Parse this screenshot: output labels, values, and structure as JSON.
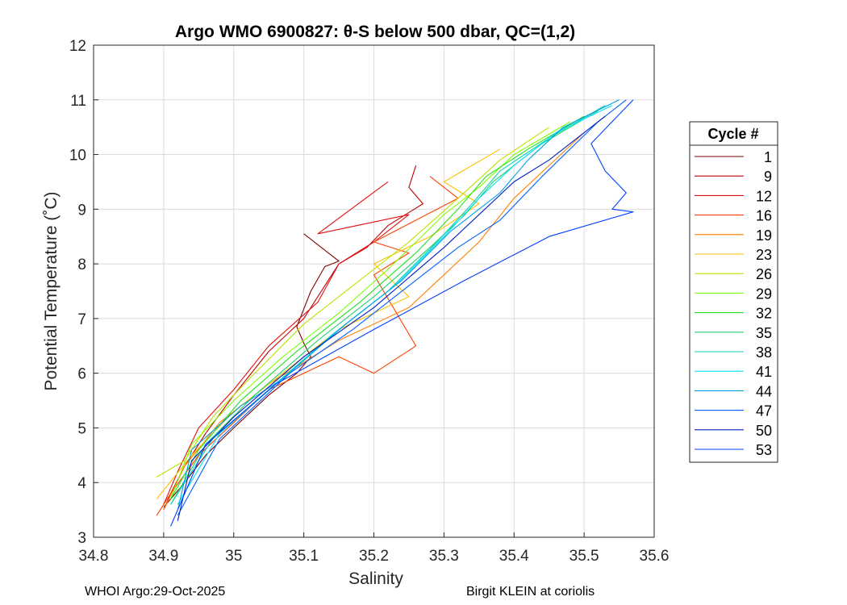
{
  "chart_data": {
    "type": "line",
    "title": "Argo WMO 6900827: θ-S below 500 dbar,  QC=(1,2)",
    "xlabel": "Salinity",
    "ylabel": "Potential Temperature (˚C)",
    "xlim": [
      34.8,
      35.6
    ],
    "ylim": [
      3,
      12
    ],
    "xticks": [
      "34.8",
      "34.9",
      "35",
      "35.1",
      "35.2",
      "35.3",
      "35.4",
      "35.5",
      "35.6"
    ],
    "yticks": [
      "3",
      "4",
      "5",
      "6",
      "7",
      "8",
      "9",
      "10",
      "11",
      "12"
    ],
    "grid": true,
    "legend_title": "Cycle #",
    "legend_position": "right",
    "series": [
      {
        "name": "1",
        "color": "#800000",
        "x": [
          35.1,
          35.12,
          35.15,
          35.13,
          35.11,
          35.09,
          35.1,
          35.11,
          35.09,
          35.05,
          35.0,
          34.96,
          34.93,
          34.91,
          34.9
        ],
        "y": [
          8.55,
          8.35,
          8.05,
          7.95,
          7.5,
          6.85,
          6.55,
          6.3,
          6.0,
          5.6,
          5.0,
          4.5,
          4.0,
          3.7,
          3.55
        ]
      },
      {
        "name": "9",
        "color": "#c00000",
        "x": [
          35.26,
          35.25,
          35.27,
          35.22,
          35.19,
          35.15,
          35.1,
          35.05,
          35.0,
          34.96,
          34.93,
          34.91,
          34.9
        ],
        "y": [
          9.8,
          9.4,
          9.1,
          8.7,
          8.3,
          8.0,
          7.0,
          6.4,
          5.6,
          4.9,
          4.3,
          3.8,
          3.5
        ]
      },
      {
        "name": "12",
        "color": "#e01010",
        "x": [
          35.22,
          35.12,
          35.25,
          35.2,
          35.15,
          35.12,
          35.05,
          35.0,
          34.95,
          34.92,
          34.9
        ],
        "y": [
          9.5,
          8.55,
          8.9,
          8.4,
          8.0,
          7.3,
          6.5,
          5.7,
          5.0,
          4.2,
          3.6
        ]
      },
      {
        "name": "16",
        "color": "#ff4000",
        "x": [
          35.28,
          35.32,
          35.2,
          35.25,
          35.2,
          35.26,
          35.2,
          35.15,
          35.1,
          35.05,
          35.0,
          34.95,
          34.91,
          34.89
        ],
        "y": [
          9.6,
          9.2,
          8.4,
          8.2,
          7.8,
          6.5,
          6.0,
          6.3,
          6.0,
          5.7,
          5.1,
          4.5,
          3.8,
          3.4
        ]
      },
      {
        "name": "19",
        "color": "#ff8000",
        "x": [
          35.5,
          35.45,
          35.4,
          35.35,
          35.3,
          35.25,
          35.15,
          35.05,
          34.98,
          34.93,
          34.9
        ],
        "y": [
          10.4,
          9.8,
          9.2,
          8.4,
          7.8,
          7.2,
          6.6,
          5.8,
          5.1,
          4.3,
          3.5
        ]
      },
      {
        "name": "23",
        "color": "#ffc000",
        "x": [
          35.38,
          35.3,
          35.35,
          35.28,
          35.2,
          35.25,
          35.15,
          35.08,
          35.0,
          34.94,
          34.89
        ],
        "y": [
          10.1,
          9.5,
          9.1,
          8.5,
          8.0,
          7.4,
          6.8,
          6.1,
          5.3,
          4.5,
          3.7
        ]
      },
      {
        "name": "26",
        "color": "#c0e000",
        "x": [
          35.45,
          35.38,
          35.32,
          35.25,
          35.18,
          35.1,
          35.03,
          34.97,
          34.93,
          34.89
        ],
        "y": [
          10.5,
          9.9,
          9.2,
          8.4,
          7.7,
          6.9,
          6.0,
          5.2,
          4.4,
          4.1
        ]
      },
      {
        "name": "29",
        "color": "#80ff00",
        "x": [
          35.48,
          35.4,
          35.35,
          35.3,
          35.22,
          35.15,
          35.07,
          35.0,
          34.94,
          34.91
        ],
        "y": [
          10.6,
          10.0,
          9.4,
          8.9,
          7.9,
          7.1,
          6.3,
          5.5,
          4.7,
          3.7
        ]
      },
      {
        "name": "32",
        "color": "#20e020",
        "x": [
          35.5,
          35.42,
          35.36,
          35.32,
          35.26,
          35.18,
          35.09,
          35.01,
          34.95,
          34.91
        ],
        "y": [
          10.7,
          10.1,
          9.6,
          9.0,
          8.2,
          7.3,
          6.4,
          5.5,
          4.6,
          3.7
        ]
      },
      {
        "name": "35",
        "color": "#20d070",
        "x": [
          35.52,
          35.44,
          35.37,
          35.33,
          35.28,
          35.2,
          35.12,
          35.03,
          34.96,
          34.91
        ],
        "y": [
          10.8,
          10.2,
          9.5,
          8.9,
          8.3,
          7.4,
          6.6,
          5.6,
          4.7,
          3.6
        ]
      },
      {
        "name": "38",
        "color": "#10d0b0",
        "x": [
          35.53,
          35.45,
          35.38,
          35.34,
          35.29,
          35.22,
          35.14,
          35.05,
          34.97,
          34.91
        ],
        "y": [
          10.9,
          10.3,
          9.7,
          9.1,
          8.4,
          7.5,
          6.7,
          5.7,
          4.8,
          3.6
        ]
      },
      {
        "name": "41",
        "color": "#00e0ff",
        "x": [
          35.54,
          35.46,
          35.4,
          35.35,
          35.3,
          35.23,
          35.15,
          35.06,
          34.98,
          34.92
        ],
        "y": [
          10.9,
          10.4,
          9.8,
          9.2,
          8.5,
          7.6,
          6.8,
          5.8,
          4.9,
          3.6
        ]
      },
      {
        "name": "44",
        "color": "#00a0e0",
        "x": [
          35.55,
          35.47,
          35.42,
          35.38,
          35.31,
          35.24,
          35.16,
          35.07,
          35.01,
          34.94,
          34.92
        ],
        "y": [
          11.0,
          10.5,
          9.9,
          9.3,
          8.6,
          7.7,
          6.9,
          5.9,
          5.4,
          4.6,
          3.5
        ]
      },
      {
        "name": "47",
        "color": "#0060ff",
        "x": [
          35.56,
          35.52,
          35.44,
          35.38,
          35.32,
          35.25,
          35.17,
          35.08,
          34.98,
          34.92
        ],
        "y": [
          11.0,
          10.6,
          9.6,
          8.8,
          8.3,
          7.6,
          6.8,
          6.0,
          4.8,
          3.4
        ]
      },
      {
        "name": "50",
        "color": "#0020c0",
        "x": [
          35.53,
          35.5,
          35.45,
          35.4,
          35.3,
          35.2,
          35.1,
          35.0,
          34.94,
          34.92
        ],
        "y": [
          10.7,
          10.4,
          9.9,
          9.5,
          8.3,
          7.2,
          6.3,
          5.2,
          4.4,
          3.3
        ]
      },
      {
        "name": "53",
        "color": "#0040ff",
        "x": [
          35.57,
          35.51,
          35.53,
          35.56,
          35.54,
          35.57,
          35.45,
          35.33,
          35.2,
          35.06,
          34.96,
          34.91
        ],
        "y": [
          11.0,
          10.2,
          9.7,
          9.3,
          9.0,
          8.95,
          8.5,
          7.7,
          6.8,
          5.8,
          4.7,
          3.2
        ]
      }
    ]
  },
  "footer": {
    "left": "WHOI Argo:29-Oct-2025",
    "right": "Birgit KLEIN at coriolis"
  }
}
